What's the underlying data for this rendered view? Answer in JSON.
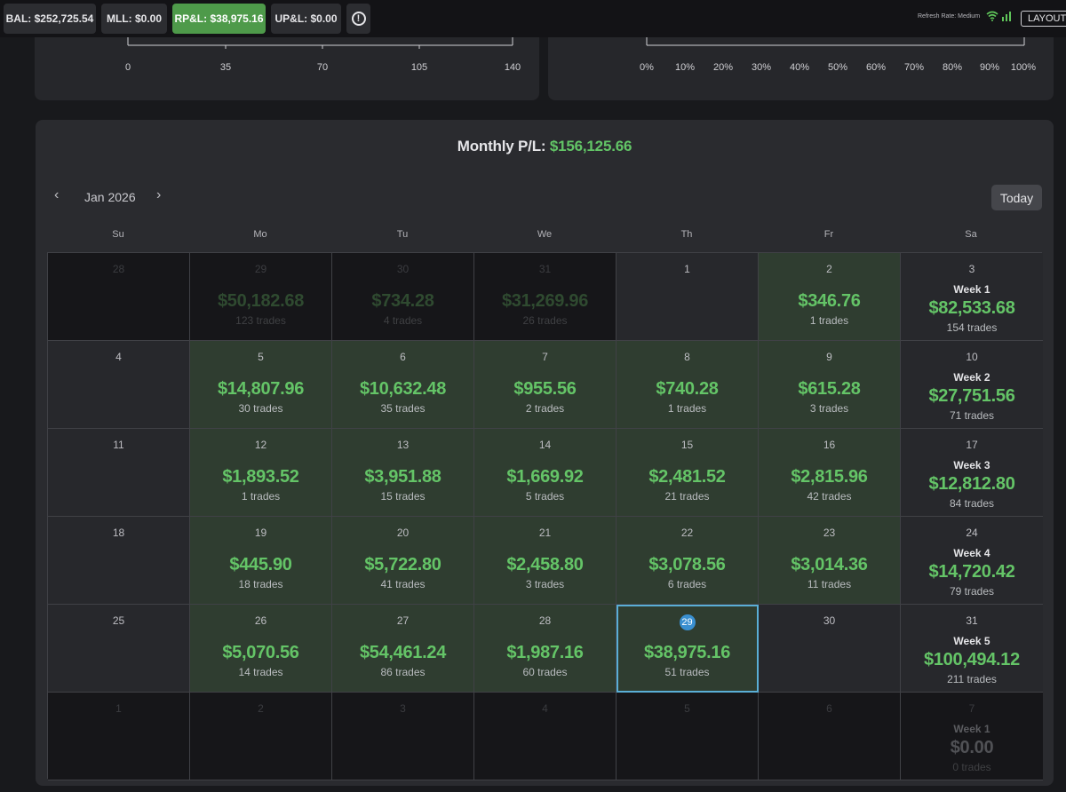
{
  "topbar": {
    "balance": "BAL: $252,725.54",
    "mll": "MLL: $0.00",
    "rpl": "RP&L: $38,975.16",
    "upl": "UP&L: $0.00",
    "alert_icon": "alert-circle-icon",
    "refresh_rate": "Refresh Rate: Medium",
    "layout": "LAYOUT"
  },
  "left_axis": {
    "ticks": [
      "0",
      "35",
      "70",
      "105",
      "140"
    ]
  },
  "right_axis": {
    "ticks": [
      "0%",
      "10%",
      "20%",
      "30%",
      "40%",
      "50%",
      "60%",
      "70%",
      "80%",
      "90%",
      "100%"
    ]
  },
  "calendar": {
    "monthly_label": "Monthly P/L:",
    "monthly_value": "$156,125.66",
    "month": "Jan 2026",
    "prev_icon": "chevron-left-icon",
    "next_icon": "chevron-right-icon",
    "today": "Today",
    "weekdays": [
      "Su",
      "Mo",
      "Tu",
      "We",
      "Th",
      "Fr",
      "Sa"
    ],
    "weeks": [
      {
        "days": [
          {
            "day": "28",
            "outside": true
          },
          {
            "day": "29",
            "outside": true,
            "pnl": "$50,182.68",
            "trades": "123 trades"
          },
          {
            "day": "30",
            "outside": true,
            "pnl": "$734.28",
            "trades": "4 trades"
          },
          {
            "day": "31",
            "outside": true,
            "pnl": "$31,269.96",
            "trades": "26 trades"
          },
          {
            "day": "1"
          },
          {
            "day": "2",
            "pnl": "$346.76",
            "trades": "1 trades"
          }
        ],
        "summary": {
          "day": "3",
          "week": "Week 1",
          "pnl": "$82,533.68",
          "trades": "154 trades"
        }
      },
      {
        "days": [
          {
            "day": "4"
          },
          {
            "day": "5",
            "pnl": "$14,807.96",
            "trades": "30 trades"
          },
          {
            "day": "6",
            "pnl": "$10,632.48",
            "trades": "35 trades"
          },
          {
            "day": "7",
            "pnl": "$955.56",
            "trades": "2 trades"
          },
          {
            "day": "8",
            "pnl": "$740.28",
            "trades": "1 trades"
          },
          {
            "day": "9",
            "pnl": "$615.28",
            "trades": "3 trades"
          }
        ],
        "summary": {
          "day": "10",
          "week": "Week 2",
          "pnl": "$27,751.56",
          "trades": "71 trades"
        }
      },
      {
        "days": [
          {
            "day": "11"
          },
          {
            "day": "12",
            "pnl": "$1,893.52",
            "trades": "1 trades"
          },
          {
            "day": "13",
            "pnl": "$3,951.88",
            "trades": "15 trades"
          },
          {
            "day": "14",
            "pnl": "$1,669.92",
            "trades": "5 trades"
          },
          {
            "day": "15",
            "pnl": "$2,481.52",
            "trades": "21 trades"
          },
          {
            "day": "16",
            "pnl": "$2,815.96",
            "trades": "42 trades"
          }
        ],
        "summary": {
          "day": "17",
          "week": "Week 3",
          "pnl": "$12,812.80",
          "trades": "84 trades"
        }
      },
      {
        "days": [
          {
            "day": "18"
          },
          {
            "day": "19",
            "pnl": "$445.90",
            "trades": "18 trades"
          },
          {
            "day": "20",
            "pnl": "$5,722.80",
            "trades": "41 trades"
          },
          {
            "day": "21",
            "pnl": "$2,458.80",
            "trades": "3 trades"
          },
          {
            "day": "22",
            "pnl": "$3,078.56",
            "trades": "6 trades"
          },
          {
            "day": "23",
            "pnl": "$3,014.36",
            "trades": "11 trades"
          }
        ],
        "summary": {
          "day": "24",
          "week": "Week 4",
          "pnl": "$14,720.42",
          "trades": "79 trades"
        }
      },
      {
        "days": [
          {
            "day": "25"
          },
          {
            "day": "26",
            "pnl": "$5,070.56",
            "trades": "14 trades"
          },
          {
            "day": "27",
            "pnl": "$54,461.24",
            "trades": "86 trades"
          },
          {
            "day": "28",
            "pnl": "$1,987.16",
            "trades": "60 trades"
          },
          {
            "day": "29",
            "pnl": "$38,975.16",
            "trades": "51 trades",
            "today": true
          },
          {
            "day": "30"
          }
        ],
        "summary": {
          "day": "31",
          "week": "Week 5",
          "pnl": "$100,494.12",
          "trades": "211 trades"
        }
      },
      {
        "days": [
          {
            "day": "1",
            "outside": true
          },
          {
            "day": "2",
            "outside": true
          },
          {
            "day": "3",
            "outside": true
          },
          {
            "day": "4",
            "outside": true
          },
          {
            "day": "5",
            "outside": true
          },
          {
            "day": "6",
            "outside": true
          }
        ],
        "summary": {
          "day": "7",
          "week": "Week 1",
          "pnl": "$0.00",
          "trades": "0 trades",
          "outside": true
        }
      }
    ]
  },
  "colors": {
    "profit_text": "#64c467",
    "rpl_chip": "#4e9a4a",
    "today_border": "#5aaed6",
    "today_dot": "#3a8fd0"
  }
}
